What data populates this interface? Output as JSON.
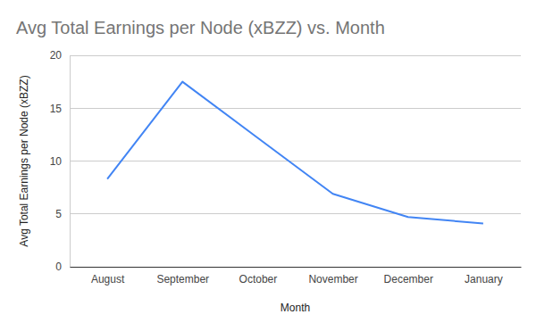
{
  "chart_data": {
    "type": "line",
    "title": "Avg Total Earnings per Node (xBZZ) vs. Month",
    "x_label": "Month",
    "y_label": "Avg Total Earnings per Node (xBZZ)",
    "categories": [
      "August",
      "September",
      "October",
      "November",
      "December",
      "January"
    ],
    "values": [
      8.3,
      17.5,
      12.2,
      6.9,
      4.7,
      4.1
    ],
    "color": "#4285f4",
    "ylim": [
      0,
      20
    ],
    "yticks": [
      0,
      5,
      10,
      15,
      20
    ],
    "grid": true
  }
}
